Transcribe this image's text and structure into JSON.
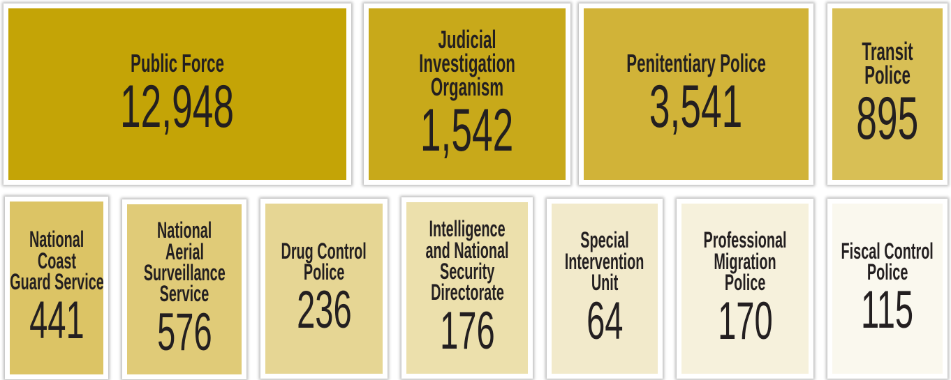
{
  "tiles": [
    {
      "label": [
        "Public Force"
      ],
      "value": "12,948",
      "color": "#c4a406"
    },
    {
      "label": [
        "Judicial",
        "Investigation",
        "Organism"
      ],
      "value": "1,542",
      "color": "#c8a91a"
    },
    {
      "label": [
        "Penitentiary Police"
      ],
      "value": "3,541",
      "color": "#d1b338"
    },
    {
      "label": [
        "Transit",
        "Police"
      ],
      "value": "895",
      "color": "#d8bf55"
    },
    {
      "label": [
        "National",
        "Coast",
        "Guard Service"
      ],
      "value": "441",
      "color": "#dcc465"
    },
    {
      "label": [
        "National",
        "Aerial",
        "Surveillance",
        "Service"
      ],
      "value": "576",
      "color": "#e0cb78"
    },
    {
      "label": [
        "Drug Control",
        "Police"
      ],
      "value": "236",
      "color": "#e6d694"
    },
    {
      "label": [
        "Intelligence",
        "and National",
        "Security",
        "Directorate"
      ],
      "value": "176",
      "color": "#ece0ac"
    },
    {
      "label": [
        "Special",
        "Intervention",
        "Unit"
      ],
      "value": "64",
      "color": "#f2eacb"
    },
    {
      "label": [
        "Professional",
        "Migration",
        "Police"
      ],
      "value": "170",
      "color": "#f6f1dc"
    },
    {
      "label": [
        "Fiscal Control",
        "Police"
      ],
      "value": "115",
      "color": "#faf8ee"
    }
  ]
}
